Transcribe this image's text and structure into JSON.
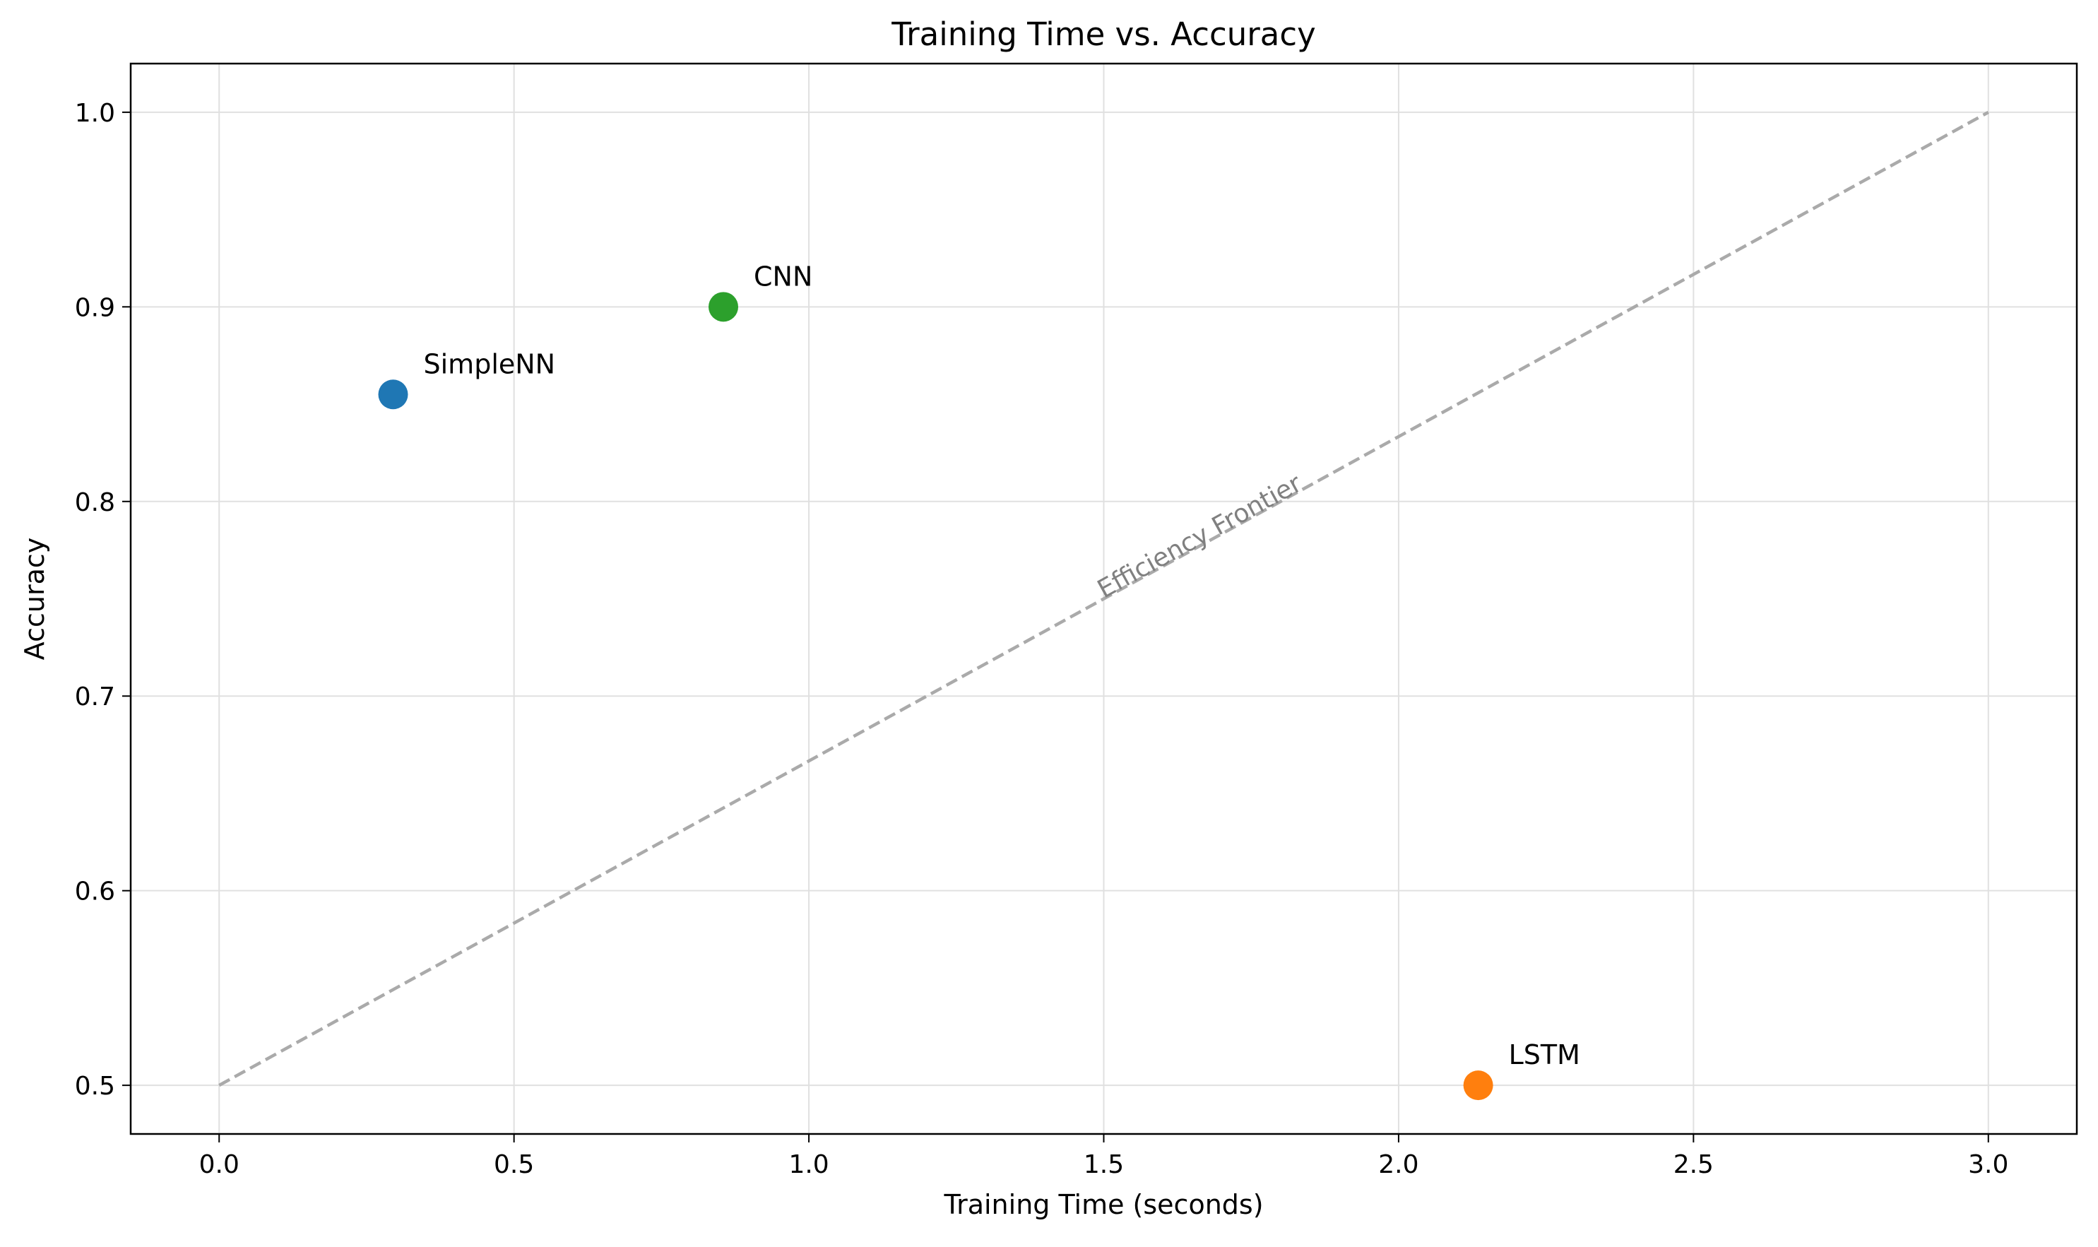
{
  "chart_data": {
    "type": "scatter",
    "title": "Training Time vs. Accuracy",
    "xlabel": "Training Time (seconds)",
    "ylabel": "Accuracy",
    "xlim": [
      -0.15,
      3.15
    ],
    "ylim": [
      0.475,
      1.025
    ],
    "x_ticks": [
      0.0,
      0.5,
      1.0,
      1.5,
      2.0,
      2.5,
      3.0
    ],
    "x_tick_labels": [
      "0.0",
      "0.5",
      "1.0",
      "1.5",
      "2.0",
      "2.5",
      "3.0"
    ],
    "y_ticks": [
      0.5,
      0.6,
      0.7,
      0.8,
      0.9,
      1.0
    ],
    "y_tick_labels": [
      "0.5",
      "0.6",
      "0.7",
      "0.8",
      "0.9",
      "1.0"
    ],
    "grid": true,
    "points": [
      {
        "label": "SimpleNN",
        "x": 0.295,
        "y": 0.855,
        "color": "#1f77b4"
      },
      {
        "label": "CNN",
        "x": 0.855,
        "y": 0.9,
        "color": "#2ca02c"
      },
      {
        "label": "LSTM",
        "x": 2.135,
        "y": 0.5,
        "color": "#ff7f0e"
      }
    ],
    "reference_line": {
      "x": [
        0.0,
        3.0
      ],
      "y": [
        0.5,
        1.0
      ],
      "style": "dashed",
      "color": "#aaaaaa",
      "label": "Efficiency Frontier",
      "label_x": 1.5,
      "label_y": 0.75
    }
  }
}
